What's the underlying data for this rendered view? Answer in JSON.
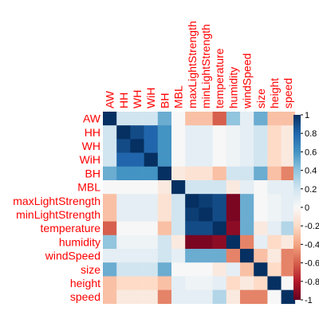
{
  "chart_data": {
    "type": "heatmap",
    "variables": [
      "AW",
      "HH",
      "WH",
      "WiH",
      "BH",
      "MBL",
      "maxLightStrength",
      "minLightStrength",
      "temperature",
      "humidity",
      "windSpeed",
      "size",
      "height",
      "speed"
    ],
    "matrix": [
      [
        1.0,
        0.2,
        0.2,
        0.2,
        0.5,
        0.0,
        -0.3,
        -0.3,
        -0.6,
        0.4,
        0.1,
        0.5,
        -0.3,
        -0.3
      ],
      [
        0.2,
        1.0,
        0.9,
        0.8,
        0.6,
        0.0,
        0.1,
        0.1,
        0.0,
        0.05,
        0.1,
        0.2,
        -0.2,
        -0.1
      ],
      [
        0.2,
        0.9,
        1.0,
        0.8,
        0.6,
        0.0,
        0.1,
        0.1,
        0.0,
        0.05,
        0.1,
        0.2,
        -0.2,
        -0.1
      ],
      [
        0.2,
        0.8,
        0.8,
        1.0,
        0.6,
        0.0,
        0.1,
        0.1,
        0.0,
        0.05,
        0.1,
        0.2,
        -0.2,
        -0.1
      ],
      [
        0.5,
        0.6,
        0.6,
        0.6,
        1.0,
        -0.1,
        -0.15,
        -0.15,
        -0.3,
        0.2,
        0.2,
        0.5,
        -0.3,
        -0.5
      ],
      [
        0.0,
        0.0,
        0.0,
        0.0,
        -0.1,
        1.0,
        0.2,
        0.2,
        0.2,
        -0.1,
        0.1,
        0.0,
        0.1,
        0.1
      ],
      [
        -0.3,
        0.1,
        0.1,
        0.1,
        -0.15,
        0.2,
        1.0,
        0.95,
        0.9,
        -0.95,
        0.5,
        0.0,
        0.05,
        0.1
      ],
      [
        -0.3,
        0.1,
        0.1,
        0.1,
        -0.15,
        0.2,
        0.95,
        1.0,
        0.9,
        -0.95,
        0.5,
        0.0,
        0.05,
        0.1
      ],
      [
        -0.6,
        0.0,
        0.0,
        0.0,
        -0.3,
        0.2,
        0.9,
        0.9,
        1.0,
        -0.9,
        0.5,
        -0.1,
        0.1,
        0.3
      ],
      [
        0.4,
        0.05,
        0.05,
        0.05,
        0.2,
        -0.1,
        -0.95,
        -0.95,
        -0.9,
        1.0,
        -0.5,
        0.1,
        -0.2,
        -0.1
      ],
      [
        0.1,
        0.1,
        0.1,
        0.1,
        0.2,
        0.1,
        0.5,
        0.5,
        0.5,
        -0.5,
        1.0,
        -0.3,
        -0.1,
        -0.5
      ],
      [
        0.5,
        0.2,
        0.2,
        0.2,
        0.5,
        0.0,
        0.0,
        0.0,
        -0.1,
        0.1,
        -0.3,
        1.0,
        -0.2,
        -0.5
      ],
      [
        -0.3,
        -0.2,
        -0.2,
        -0.2,
        -0.3,
        0.1,
        0.05,
        0.05,
        0.1,
        -0.2,
        -0.1,
        -0.2,
        1.0,
        0.0
      ],
      [
        -0.3,
        -0.1,
        -0.1,
        -0.1,
        -0.5,
        0.1,
        0.1,
        0.1,
        0.3,
        -0.1,
        -0.5,
        -0.5,
        0.0,
        1.0
      ]
    ],
    "colorbar": {
      "range": [
        -1,
        1
      ],
      "ticks": [
        "1",
        "0.8",
        "0.6",
        "0.4",
        "0.2",
        "0",
        "-0.2",
        "-0.4",
        "-0.6",
        "-0.8",
        "-1"
      ]
    },
    "label_color": "#ff0000",
    "palette": [
      "#67001f",
      "#b2182b",
      "#d6604d",
      "#f4a582",
      "#fddbc7",
      "#f7f7f7",
      "#d1e5f0",
      "#92c5de",
      "#4393c3",
      "#2166ac",
      "#053061"
    ]
  }
}
